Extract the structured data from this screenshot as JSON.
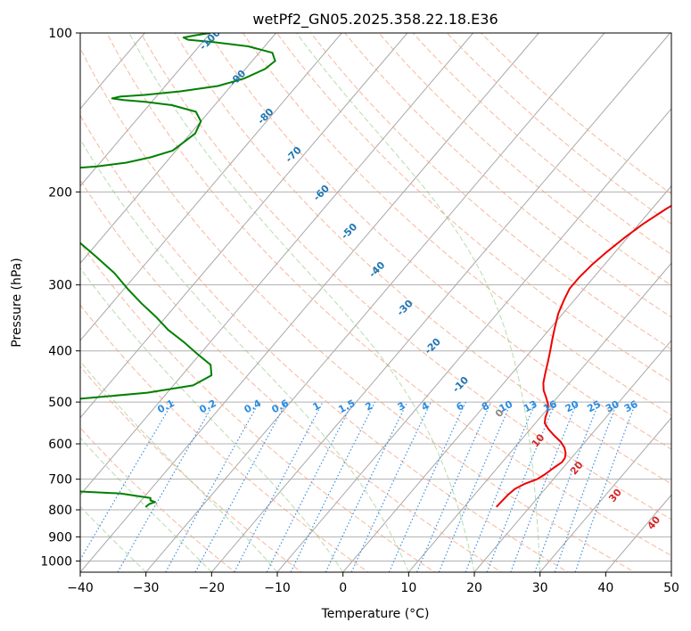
{
  "chart_data": {
    "type": "line",
    "title": "wetPf2_GN05.2025.358.22.18.E36",
    "xlabel": "Temperature (°C)",
    "ylabel": "Pressure (hPa)",
    "xlim": [
      -40,
      50
    ],
    "ylim": [
      1050,
      100
    ],
    "y_scale": "log",
    "grid": true,
    "x_ticks": [
      -40,
      -30,
      -20,
      -10,
      0,
      10,
      20,
      30,
      40,
      50
    ],
    "y_ticks": [
      100,
      200,
      300,
      400,
      500,
      600,
      700,
      800,
      900,
      1000
    ],
    "isotherm_spacing": 10,
    "dry_adiabat_thetas": [
      -20,
      -10,
      0,
      10,
      20,
      30,
      40,
      50,
      60,
      70,
      80,
      90,
      100,
      110,
      120,
      130,
      140,
      150,
      160
    ],
    "moist_adiabat_labels": [
      "-100",
      "-90",
      "-80",
      "-70",
      "-60",
      "-50",
      "-40",
      "-30",
      "-20",
      "-10"
    ],
    "moist_adiabat_start_temps": [
      -70,
      -60,
      -50,
      -40,
      -30,
      -20,
      -10,
      0,
      10,
      20,
      30
    ],
    "mixing_ratio_labels": [
      "0.1",
      "0.2",
      "0.4",
      "0.6",
      "1",
      "1.5",
      "2",
      "3",
      "4",
      "6",
      "8",
      "10",
      "13",
      "16",
      "20",
      "25",
      "30",
      "36"
    ],
    "dry_adiabat_labels": [
      "0",
      "10",
      "20",
      "30",
      "40"
    ],
    "series": [
      {
        "color": "#ee0000",
        "points": [
          [
            14.9,
            790
          ],
          [
            15.0,
            770
          ],
          [
            15.1,
            750
          ],
          [
            15.4,
            730
          ],
          [
            16.2,
            715
          ],
          [
            17.5,
            700
          ],
          [
            18.1,
            685
          ],
          [
            18.6,
            665
          ],
          [
            19.1,
            650
          ],
          [
            19.0,
            638
          ],
          [
            18.5,
            625
          ],
          [
            17.6,
            610
          ],
          [
            16.3,
            595
          ],
          [
            14.4,
            578
          ],
          [
            12.7,
            562
          ],
          [
            11.4,
            548
          ],
          [
            10.8,
            535
          ],
          [
            10.3,
            520
          ],
          [
            9.5,
            505
          ],
          [
            8.3,
            490
          ],
          [
            7.0,
            475
          ],
          [
            6.0,
            460
          ],
          [
            5.0,
            440
          ],
          [
            4.0,
            420
          ],
          [
            2.9,
            400
          ],
          [
            1.7,
            380
          ],
          [
            0.5,
            360
          ],
          [
            -0.7,
            340
          ],
          [
            -1.6,
            320
          ],
          [
            -2.2,
            305
          ],
          [
            -2.2,
            290
          ],
          [
            -1.9,
            275
          ],
          [
            -1.3,
            260
          ],
          [
            -0.5,
            245
          ],
          [
            0.6,
            230
          ],
          [
            2.2,
            215
          ],
          [
            4.4,
            200
          ],
          [
            6.3,
            188
          ],
          [
            7.5,
            175
          ],
          [
            8.1,
            163
          ],
          [
            8.6,
            152
          ],
          [
            9.6,
            142
          ],
          [
            11.0,
            133
          ],
          [
            12.1,
            125
          ],
          [
            12.7,
            118
          ],
          [
            13.6,
            112
          ],
          [
            15.3,
            106
          ],
          [
            17.9,
            100
          ]
        ]
      },
      {
        "color": "#008000",
        "points": [
          [
            -38.5,
            790
          ],
          [
            -38.3,
            780
          ],
          [
            -37.7,
            773
          ],
          [
            -38.6,
            768
          ],
          [
            -38.9,
            760
          ],
          [
            -44.0,
            745
          ],
          [
            -54.0,
            735
          ],
          [
            -65.0,
            730
          ],
          [
            -74.0,
            725
          ],
          [
            -95.0,
            720
          ],
          [
            -96.0,
            530
          ],
          [
            -82.0,
            510
          ],
          [
            -64.0,
            495
          ],
          [
            -53.0,
            480
          ],
          [
            -47.0,
            465
          ],
          [
            -45.5,
            445
          ],
          [
            -47.0,
            425
          ],
          [
            -50.5,
            405
          ],
          [
            -54.0,
            385
          ],
          [
            -58.0,
            365
          ],
          [
            -61.5,
            345
          ],
          [
            -65.5,
            325
          ],
          [
            -69.5,
            305
          ],
          [
            -73.5,
            285
          ],
          [
            -78.5,
            265
          ],
          [
            -84.0,
            245
          ],
          [
            -90.0,
            225
          ],
          [
            -95.0,
            212
          ],
          [
            -98.5,
            200
          ],
          [
            -102.0,
            190
          ],
          [
            -105.5,
            185
          ],
          [
            -103.5,
            183
          ],
          [
            -100.0,
            182
          ],
          [
            -95.0,
            181
          ],
          [
            -90.0,
            179
          ],
          [
            -86.0,
            176
          ],
          [
            -83.0,
            172
          ],
          [
            -80.5,
            167
          ],
          [
            -80.0,
            162
          ],
          [
            -79.3,
            155
          ],
          [
            -80.0,
            147
          ],
          [
            -82.0,
            141
          ],
          [
            -86.5,
            137
          ],
          [
            -91.0,
            135
          ],
          [
            -94.5,
            134
          ],
          [
            -96.5,
            133
          ],
          [
            -95.5,
            132
          ],
          [
            -92.0,
            131
          ],
          [
            -87.0,
            129
          ],
          [
            -82.0,
            126
          ],
          [
            -79.0,
            122
          ],
          [
            -77.0,
            117
          ],
          [
            -76.5,
            113
          ],
          [
            -78.0,
            109
          ],
          [
            -82.5,
            106
          ],
          [
            -88.5,
            104
          ],
          [
            -92.5,
            103
          ],
          [
            -93.5,
            102
          ],
          [
            -92.0,
            101
          ],
          [
            -90.0,
            100
          ]
        ]
      }
    ]
  }
}
